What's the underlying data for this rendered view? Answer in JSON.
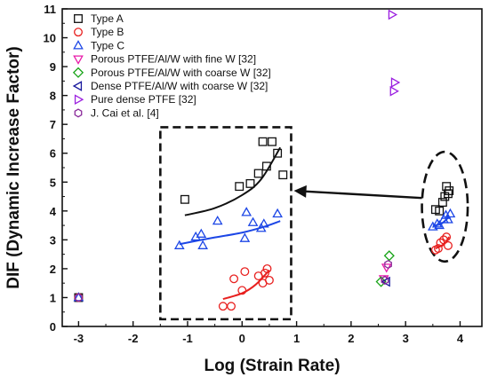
{
  "chart_data": {
    "type": "scatter",
    "xlabel": "Log (Strain Rate)",
    "ylabel": "DIF (Dynamic Increase Factor)",
    "xlim": [
      -3.3,
      4.4
    ],
    "ylim": [
      0,
      11
    ],
    "xticks": [
      "-3",
      "-2",
      "-1",
      "0",
      "1",
      "2",
      "3",
      "4"
    ],
    "yticks": [
      "0",
      "1",
      "2",
      "3",
      "4",
      "5",
      "6",
      "7",
      "8",
      "9",
      "10",
      "11"
    ],
    "grid": false,
    "legend_position": "top-left",
    "series": [
      {
        "name": "Type A",
        "marker": "square",
        "color": "#111111",
        "points": [
          [
            -3,
            1.0
          ],
          [
            -1.05,
            4.4
          ],
          [
            -0.05,
            4.85
          ],
          [
            0.15,
            4.95
          ],
          [
            0.3,
            5.3
          ],
          [
            0.38,
            6.4
          ],
          [
            0.45,
            5.55
          ],
          [
            0.55,
            6.4
          ],
          [
            0.65,
            6.0
          ],
          [
            0.75,
            5.25
          ],
          [
            3.55,
            4.05
          ],
          [
            3.62,
            4.0
          ],
          [
            3.68,
            4.3
          ],
          [
            3.72,
            4.5
          ],
          [
            3.75,
            4.85
          ],
          [
            3.78,
            4.6
          ],
          [
            3.8,
            4.7
          ]
        ]
      },
      {
        "name": "Type B",
        "marker": "circle",
        "color": "#e8201f",
        "points": [
          [
            -3,
            1.0
          ],
          [
            -0.35,
            0.7
          ],
          [
            -0.2,
            0.7
          ],
          [
            -0.15,
            1.65
          ],
          [
            0.0,
            1.25
          ],
          [
            0.05,
            1.9
          ],
          [
            0.3,
            1.75
          ],
          [
            0.38,
            1.5
          ],
          [
            0.42,
            1.85
          ],
          [
            0.46,
            2.0
          ],
          [
            0.5,
            1.6
          ],
          [
            3.55,
            2.65
          ],
          [
            3.6,
            2.7
          ],
          [
            3.64,
            2.9
          ],
          [
            3.7,
            3.0
          ],
          [
            3.75,
            3.1
          ],
          [
            3.78,
            2.8
          ]
        ]
      },
      {
        "name": "Type C",
        "marker": "triangle-up",
        "color": "#1c46e6",
        "points": [
          [
            -3,
            1.0
          ],
          [
            -1.15,
            2.8
          ],
          [
            -0.85,
            3.1
          ],
          [
            -0.75,
            3.2
          ],
          [
            -0.72,
            2.8
          ],
          [
            -0.45,
            3.65
          ],
          [
            0.05,
            3.05
          ],
          [
            0.08,
            3.95
          ],
          [
            0.2,
            3.6
          ],
          [
            0.35,
            3.4
          ],
          [
            0.4,
            3.55
          ],
          [
            0.65,
            3.9
          ],
          [
            3.5,
            3.45
          ],
          [
            3.58,
            3.55
          ],
          [
            3.62,
            3.5
          ],
          [
            3.7,
            3.7
          ],
          [
            3.74,
            3.85
          ],
          [
            3.78,
            3.7
          ],
          [
            3.82,
            3.9
          ]
        ]
      },
      {
        "name": "Porous PTFE/Al/W with fine W [32]",
        "marker": "triangle-down",
        "color": "#e81aa8",
        "points": [
          [
            2.6,
            1.65
          ],
          [
            2.65,
            2.05
          ]
        ]
      },
      {
        "name": "Porous PTFE/Al/W with coarse W [32]",
        "marker": "diamond",
        "color": "#17a317",
        "points": [
          [
            2.55,
            1.55
          ],
          [
            2.7,
            2.45
          ]
        ]
      },
      {
        "name": "Dense PTFE/Al/W with coarse W [32]",
        "marker": "triangle-left",
        "color": "#1a1a9e",
        "points": [
          [
            2.65,
            1.55
          ]
        ]
      },
      {
        "name": "Pure dense PTFE [32]",
        "marker": "triangle-right",
        "color": "#9b1fe0",
        "points": [
          [
            2.75,
            10.8
          ],
          [
            2.8,
            8.45
          ],
          [
            2.78,
            8.15
          ]
        ]
      },
      {
        "name": "J. Cai et al. [4]",
        "marker": "hexagon",
        "color": "#8a2a9a",
        "points": [
          [
            -3,
            1.0
          ],
          [
            2.62,
            1.6
          ],
          [
            2.68,
            2.15
          ]
        ]
      }
    ],
    "fit_curves": [
      {
        "color": "#111111",
        "points": [
          [
            -1.05,
            3.85
          ],
          [
            -0.5,
            4.1
          ],
          [
            0.0,
            4.55
          ],
          [
            0.35,
            5.1
          ],
          [
            0.7,
            6.2
          ]
        ]
      },
      {
        "color": "#1c46e6",
        "points": [
          [
            -1.15,
            2.85
          ],
          [
            -0.6,
            3.05
          ],
          [
            0.0,
            3.25
          ],
          [
            0.4,
            3.45
          ],
          [
            0.7,
            3.65
          ]
        ]
      },
      {
        "color": "#e8201f",
        "points": [
          [
            -0.35,
            0.95
          ],
          [
            0.0,
            1.15
          ],
          [
            0.25,
            1.45
          ],
          [
            0.5,
            1.95
          ]
        ]
      },
      {
        "color": "#1c46e6",
        "points": [
          [
            3.5,
            3.5
          ],
          [
            3.65,
            3.55
          ],
          [
            3.8,
            3.8
          ]
        ]
      },
      {
        "color": "#e8201f",
        "points": [
          [
            3.55,
            2.7
          ],
          [
            3.7,
            2.85
          ],
          [
            3.8,
            3.1
          ]
        ]
      }
    ],
    "annotations": {
      "zoom_box": {
        "x": [
          -1.5,
          0.9
        ],
        "y": [
          0.25,
          6.9
        ]
      },
      "ellipse": {
        "cx": 3.72,
        "cy": 4.15,
        "rx": 0.42,
        "ry": 1.9
      },
      "arrow": {
        "from": [
          3.3,
          4.45
        ],
        "to": [
          0.95,
          4.7
        ]
      }
    }
  }
}
